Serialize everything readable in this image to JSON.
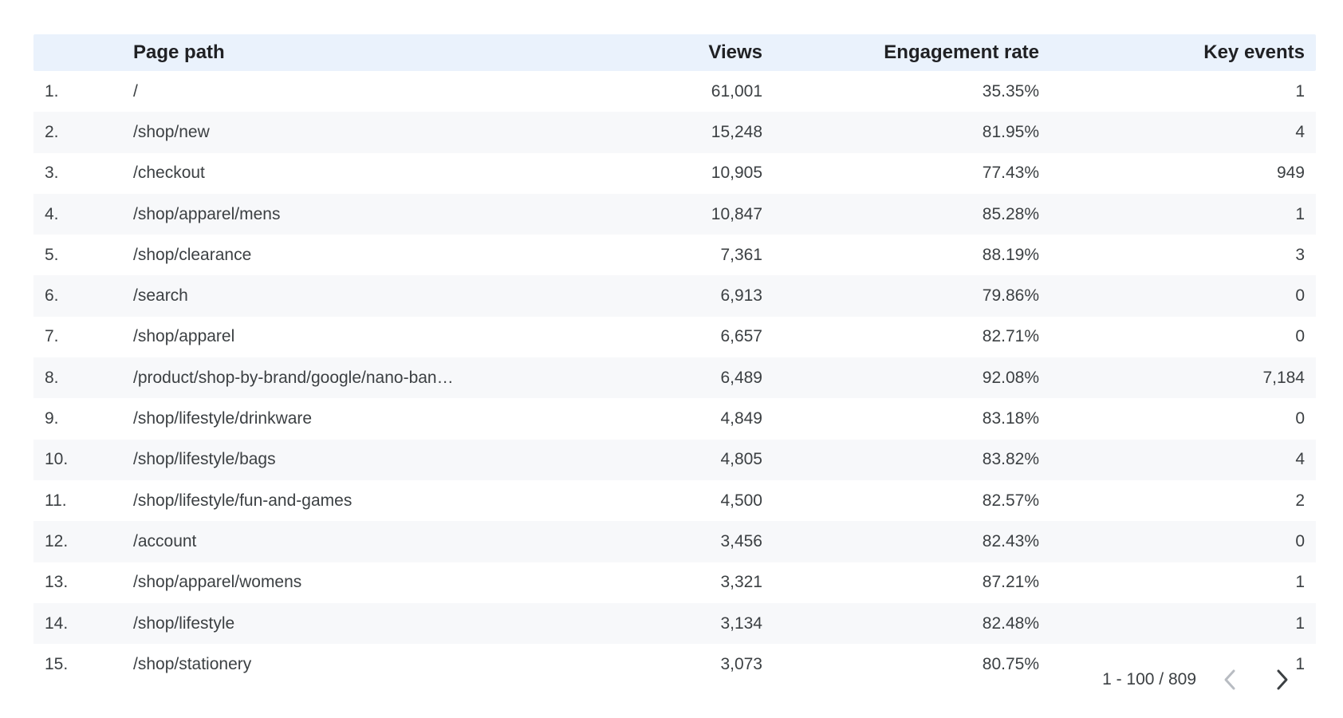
{
  "table": {
    "columns": {
      "index": "",
      "page_path": "Page path",
      "views": "Views",
      "engagement_rate": "Engagement rate",
      "key_events": "Key events"
    },
    "rows": [
      {
        "idx": "1.",
        "path": "/",
        "views": "61,001",
        "eng": "35.35%",
        "key": "1"
      },
      {
        "idx": "2.",
        "path": "/shop/new",
        "views": "15,248",
        "eng": "81.95%",
        "key": "4"
      },
      {
        "idx": "3.",
        "path": "/checkout",
        "views": "10,905",
        "eng": "77.43%",
        "key": "949"
      },
      {
        "idx": "4.",
        "path": "/shop/apparel/mens",
        "views": "10,847",
        "eng": "85.28%",
        "key": "1"
      },
      {
        "idx": "5.",
        "path": "/shop/clearance",
        "views": "7,361",
        "eng": "88.19%",
        "key": "3"
      },
      {
        "idx": "6.",
        "path": "/search",
        "views": "6,913",
        "eng": "79.86%",
        "key": "0"
      },
      {
        "idx": "7.",
        "path": "/shop/apparel",
        "views": "6,657",
        "eng": "82.71%",
        "key": "0"
      },
      {
        "idx": "8.",
        "path": "/product/shop-by-brand/google/nano-ban…",
        "views": "6,489",
        "eng": "92.08%",
        "key": "7,184"
      },
      {
        "idx": "9.",
        "path": "/shop/lifestyle/drinkware",
        "views": "4,849",
        "eng": "83.18%",
        "key": "0"
      },
      {
        "idx": "10.",
        "path": "/shop/lifestyle/bags",
        "views": "4,805",
        "eng": "83.82%",
        "key": "4"
      },
      {
        "idx": "11.",
        "path": "/shop/lifestyle/fun-and-games",
        "views": "4,500",
        "eng": "82.57%",
        "key": "2"
      },
      {
        "idx": "12.",
        "path": "/account",
        "views": "3,456",
        "eng": "82.43%",
        "key": "0"
      },
      {
        "idx": "13.",
        "path": "/shop/apparel/womens",
        "views": "3,321",
        "eng": "87.21%",
        "key": "1"
      },
      {
        "idx": "14.",
        "path": "/shop/lifestyle",
        "views": "3,134",
        "eng": "82.48%",
        "key": "1"
      },
      {
        "idx": "15.",
        "path": "/shop/stationery",
        "views": "3,073",
        "eng": "80.75%",
        "key": "1"
      }
    ]
  },
  "pagination": {
    "label": "1 - 100 / 809",
    "prev_icon": "chevron-left-icon",
    "next_icon": "chevron-right-icon"
  },
  "colors": {
    "header_bg": "#eaf2fc",
    "stripe_bg": "#f7f8fa",
    "text": "#3c4043",
    "prev_disabled": "#b8bcc2",
    "next_enabled": "#3c4043"
  }
}
